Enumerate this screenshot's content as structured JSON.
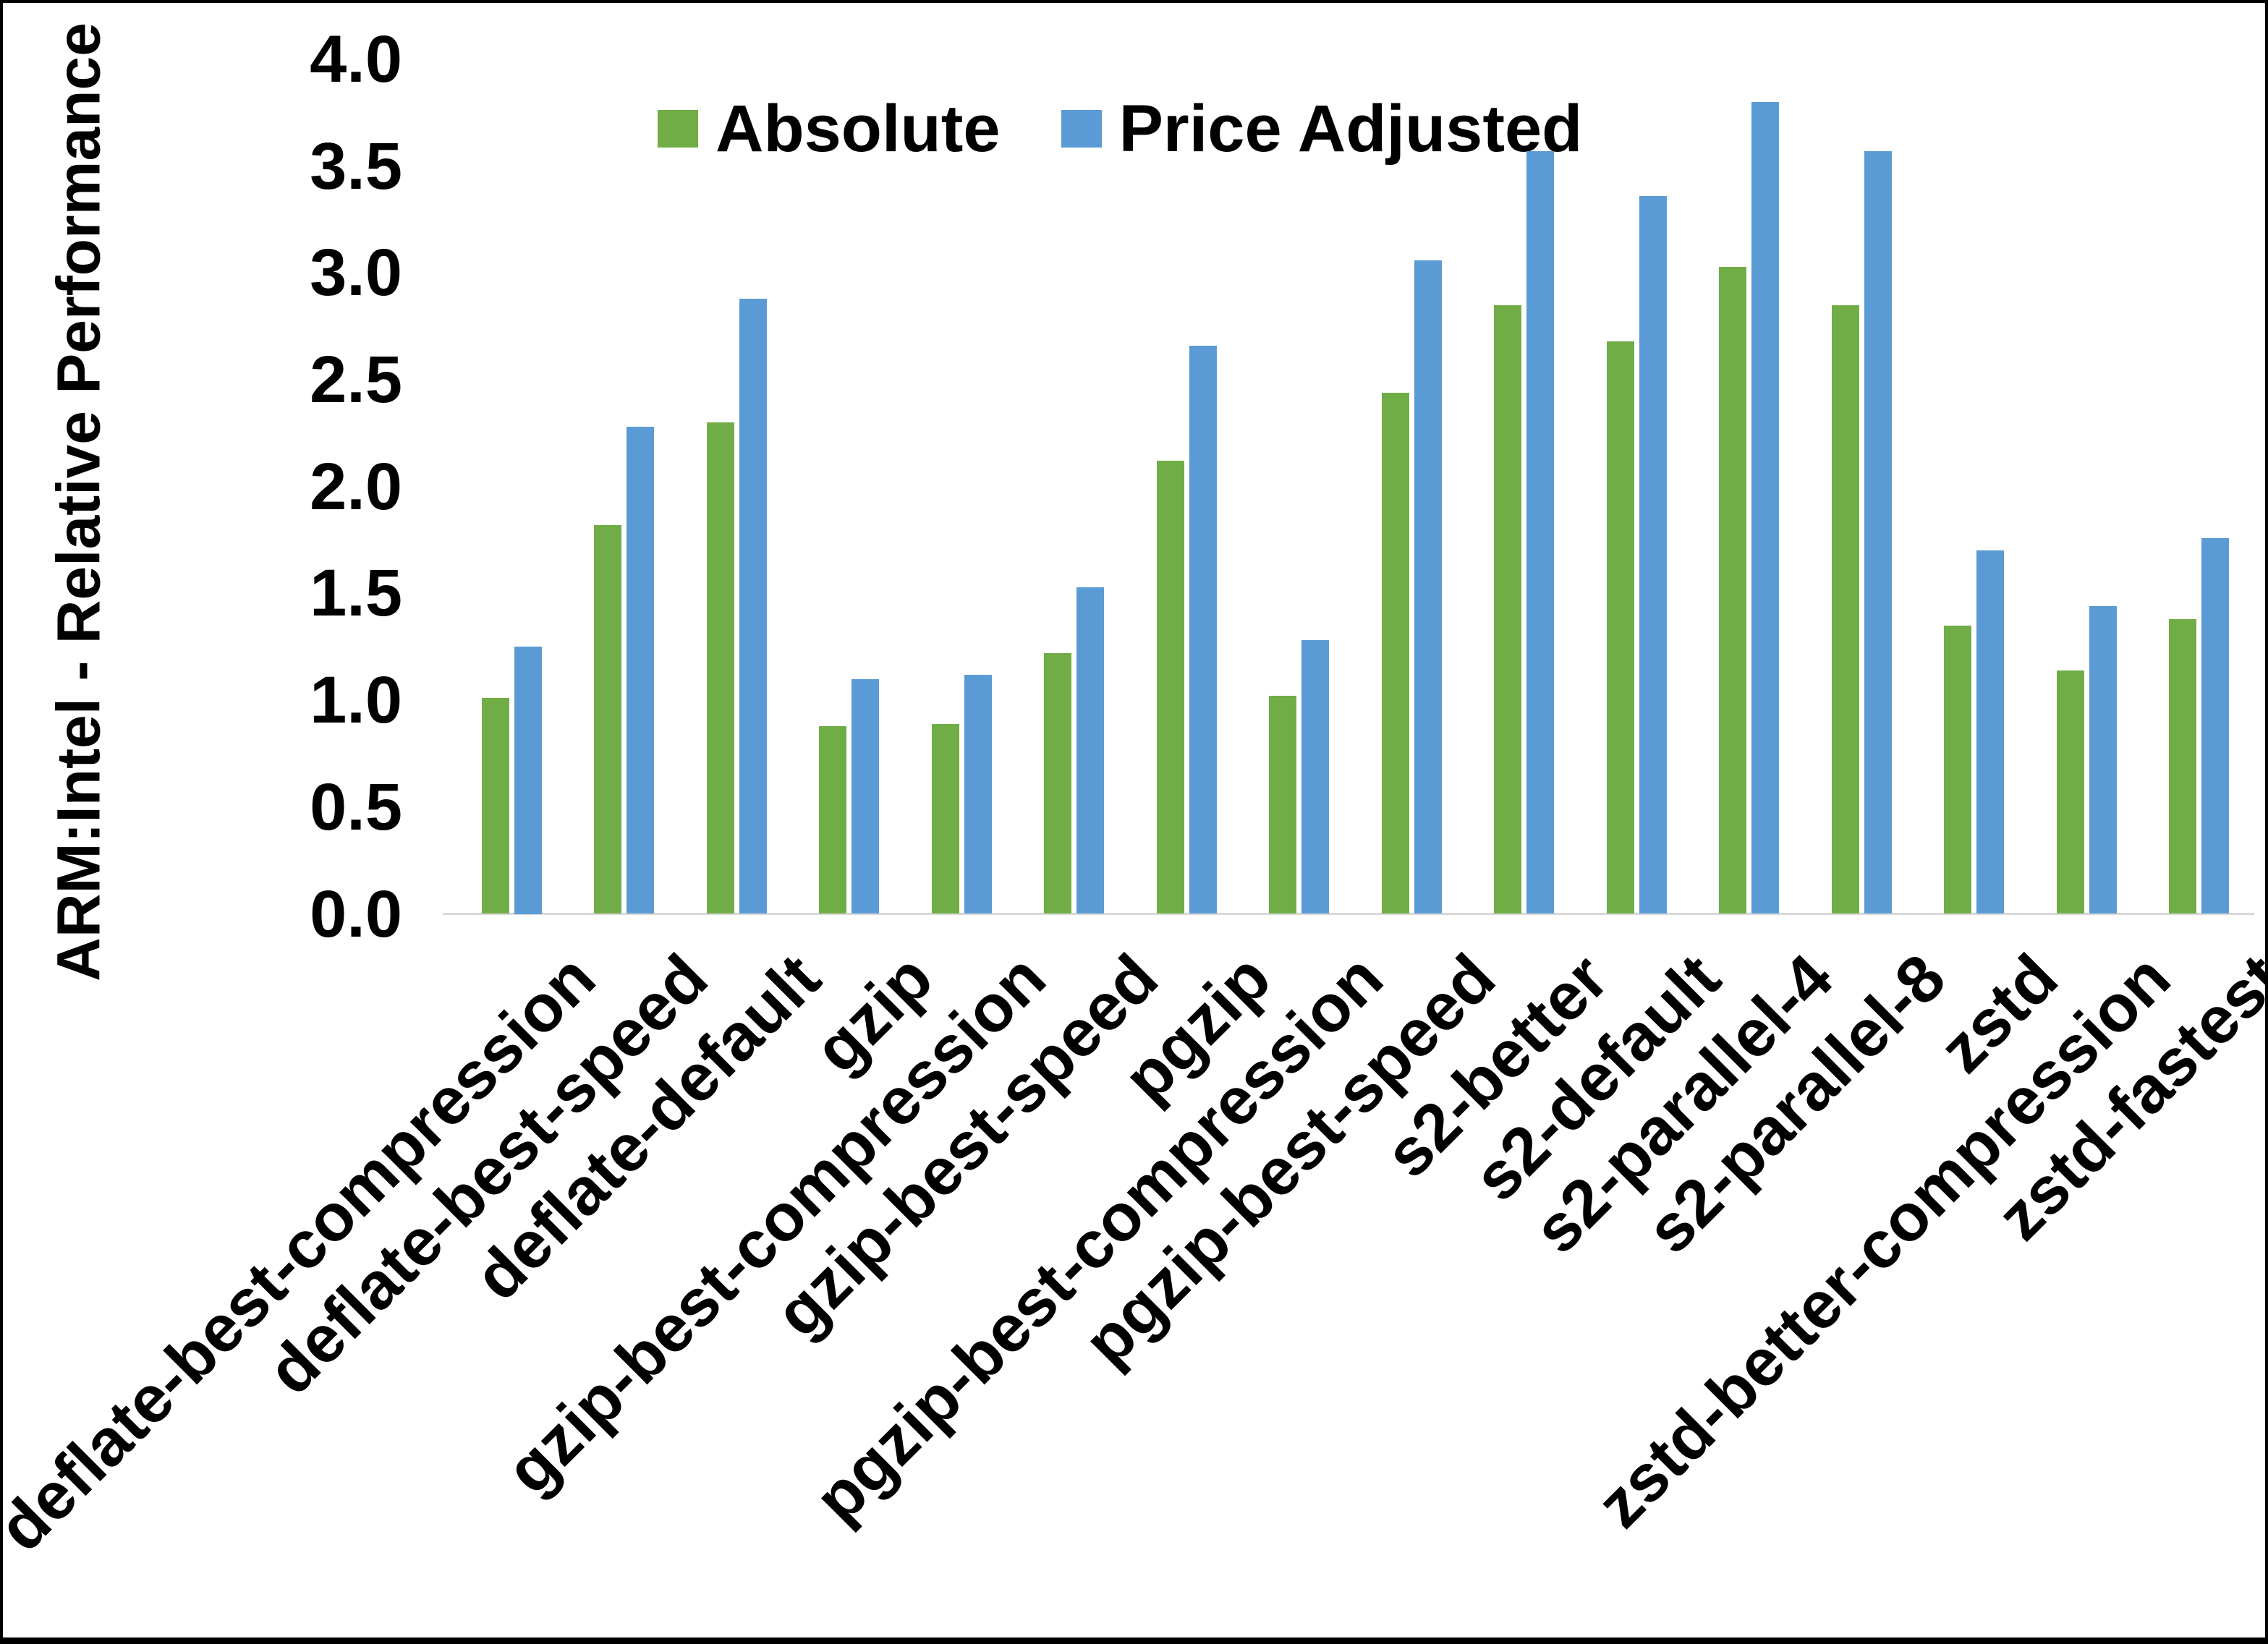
{
  "figure": {
    "y_axis_title": "ARM:Intel - Relative Performance",
    "colors": {
      "absolute": "#70AD47",
      "price_adjusted": "#5B9BD5",
      "baseline": "#D9D9D9",
      "text": "#000000"
    }
  },
  "chart_data": {
    "type": "bar",
    "title": "",
    "xlabel": "",
    "ylabel": "ARM:Intel - Relative Performance",
    "ylim": [
      0.0,
      4.0
    ],
    "ytick_step": 0.5,
    "yticks": [
      "0.0",
      "0.5",
      "1.0",
      "1.5",
      "2.0",
      "2.5",
      "3.0",
      "3.5",
      "4.0"
    ],
    "grid": false,
    "legend_position": "top-center",
    "categories": [
      "deflate-best-compression",
      "deflate-best-speed",
      "deflate-default",
      "gzip",
      "gzip-best-compression",
      "gzip-best-speed",
      "pgzip",
      "pgzip-best-compression",
      "pgzip-best-speed",
      "s2-better",
      "s2-default",
      "s2-parallel-4",
      "s2-parallel-8",
      "zstd",
      "zstd-better-compression",
      "zstd-fastest"
    ],
    "series": [
      {
        "name": "Absolute",
        "color": "#70AD47",
        "values": [
          1.01,
          1.82,
          2.3,
          0.88,
          0.89,
          1.22,
          2.12,
          1.02,
          2.44,
          2.85,
          2.68,
          3.03,
          2.85,
          1.35,
          1.14,
          1.38
        ]
      },
      {
        "name": "Price Adjusted",
        "color": "#5B9BD5",
        "values": [
          1.25,
          2.28,
          2.88,
          1.1,
          1.12,
          1.53,
          2.66,
          1.28,
          3.06,
          3.57,
          3.36,
          3.8,
          3.57,
          1.7,
          1.44,
          1.76
        ]
      }
    ]
  }
}
